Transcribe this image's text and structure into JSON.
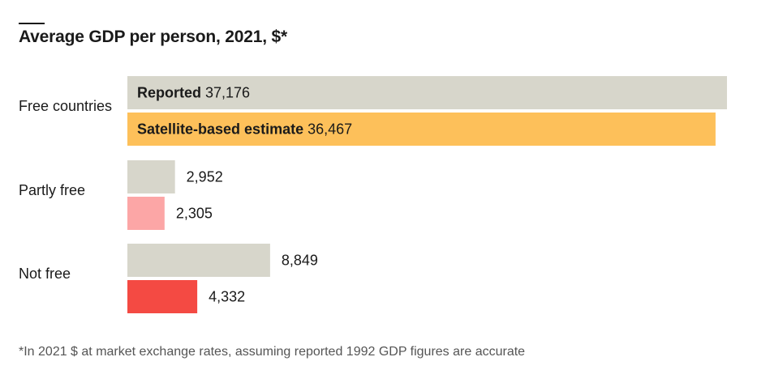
{
  "chart_data": {
    "type": "bar",
    "orientation": "horizontal",
    "title": "Average GDP per person, 2021, $*",
    "categories": [
      "Free countries",
      "Partly free",
      "Not free"
    ],
    "series": [
      {
        "name": "Reported",
        "values": [
          37176,
          2952,
          8849
        ],
        "labels": [
          "37,176",
          "2,952",
          "8,849"
        ]
      },
      {
        "name": "Satellite-based estimate",
        "values": [
          36467,
          2305,
          4332
        ],
        "labels": [
          "36,467",
          "2,305",
          "4,332"
        ]
      }
    ],
    "colors": {
      "reported": "#d7d6cb",
      "estimate": [
        "#fdc05a",
        "#fca6a6",
        "#f44a43"
      ]
    },
    "xlim": [
      0,
      37176
    ],
    "grid": false,
    "legend": "inline labels on first category"
  },
  "footnote": "*In 2021 $ at market exchange rates, assuming reported 1992 GDP figures are accurate"
}
